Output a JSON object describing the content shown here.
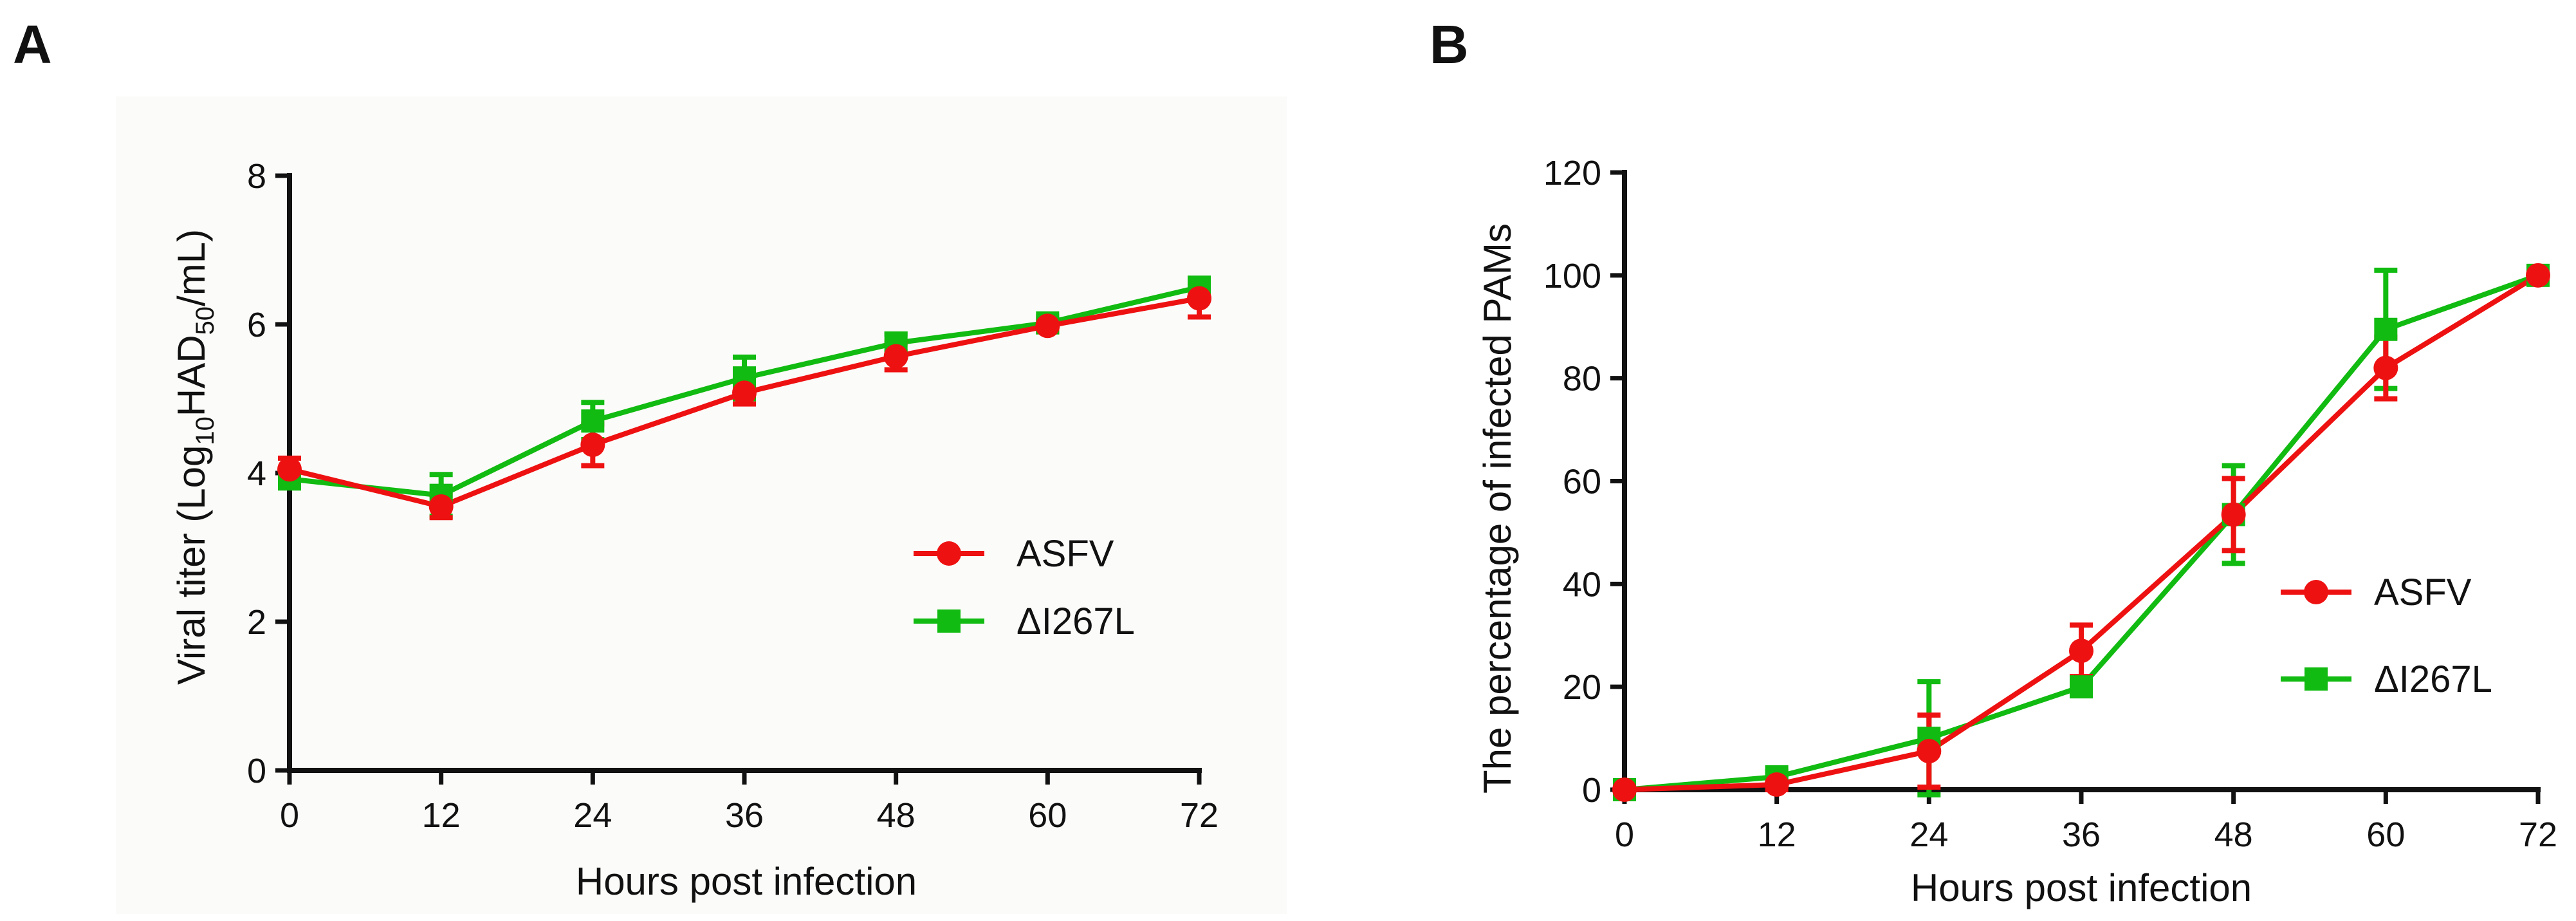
{
  "colors": {
    "asfv": "#ee1111",
    "mutant": "#11bb11"
  },
  "chart_data": [
    {
      "panel_label": "A",
      "type": "line",
      "title": "",
      "xlabel": "Hours post infection",
      "ylabel_parts": {
        "pre": "Viral titer (Log",
        "sub1": "10",
        "mid": "HAD",
        "sub2": "50",
        "post": "/mL)"
      },
      "x": [
        0,
        12,
        24,
        36,
        48,
        60,
        72
      ],
      "xlim": [
        0,
        72
      ],
      "ylim": [
        0,
        8
      ],
      "xticks": [
        "0",
        "12",
        "24",
        "36",
        "48",
        "60",
        "72"
      ],
      "yticks": [
        "0",
        "2",
        "4",
        "6",
        "8"
      ],
      "legend_position": "center-right",
      "series": [
        {
          "name": "ASFV",
          "marker": "circle",
          "color_key": "asfv",
          "values": [
            4.05,
            3.55,
            4.38,
            5.08,
            5.57,
            5.98,
            6.35
          ],
          "errors": [
            0.15,
            0.15,
            0.28,
            0.15,
            0.18,
            0.08,
            0.25
          ]
        },
        {
          "name": "ΔI267L",
          "marker": "square",
          "color_key": "mutant",
          "values": [
            3.92,
            3.7,
            4.7,
            5.28,
            5.75,
            6.02,
            6.5
          ],
          "errors": [
            0.1,
            0.28,
            0.25,
            0.28,
            0.12,
            0.08,
            0.12
          ]
        }
      ]
    },
    {
      "panel_label": "B",
      "type": "line",
      "title": "",
      "xlabel": "Hours post infection",
      "ylabel": "The percentage of infected PAMs",
      "x": [
        0,
        12,
        24,
        36,
        48,
        60,
        72
      ],
      "xlim": [
        0,
        72
      ],
      "ylim": [
        0,
        120
      ],
      "xticks": [
        "0",
        "12",
        "24",
        "36",
        "48",
        "60",
        "72"
      ],
      "yticks": [
        "0",
        "20",
        "40",
        "60",
        "80",
        "100",
        "120"
      ],
      "legend_position": "center-right",
      "series": [
        {
          "name": "ASFV",
          "marker": "circle",
          "color_key": "asfv",
          "values": [
            0,
            1,
            7.5,
            27,
            53.5,
            82,
            100
          ],
          "errors": [
            1,
            1,
            7,
            5,
            7,
            6,
            0
          ]
        },
        {
          "name": "ΔI267L",
          "marker": "square",
          "color_key": "mutant",
          "values": [
            0,
            2.5,
            10,
            20,
            53.5,
            89.5,
            100
          ],
          "errors": [
            1,
            1,
            11,
            1,
            9.5,
            11.5,
            0
          ]
        }
      ]
    }
  ]
}
